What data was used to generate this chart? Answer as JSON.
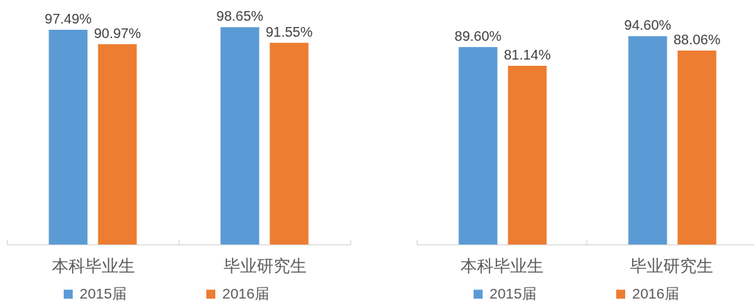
{
  "chart_data": [
    {
      "type": "bar",
      "categories": [
        "本科毕业生",
        "毕业研究生"
      ],
      "series": [
        {
          "name": "2015届",
          "color": "#5b9bd5",
          "values": [
            97.49,
            98.65
          ],
          "value_labels": [
            "97.49%",
            "98.65%"
          ]
        },
        {
          "name": "2016届",
          "color": "#ed7d31",
          "values": [
            90.97,
            91.55
          ],
          "value_labels": [
            "90.97%",
            "91.55%"
          ]
        }
      ],
      "legend": "bottom",
      "tick_labels": "x"
    },
    {
      "type": "bar",
      "categories": [
        "本科毕业生",
        "毕业研究生"
      ],
      "series": [
        {
          "name": "2015届",
          "color": "#5b9bd5",
          "values": [
            89.6,
            94.6
          ],
          "value_labels": [
            "89.60%",
            "94.60%"
          ]
        },
        {
          "name": "2016届",
          "color": "#ed7d31",
          "values": [
            81.14,
            88.06
          ],
          "value_labels": [
            "81.14%",
            "88.06%"
          ]
        }
      ],
      "legend": "bottom",
      "tick_labels": "x"
    }
  ]
}
